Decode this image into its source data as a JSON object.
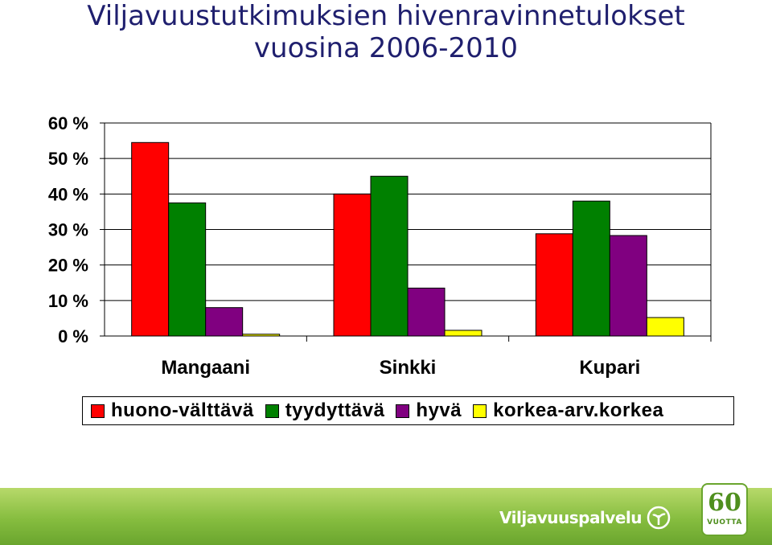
{
  "title": {
    "line1": "Viljavuustutkimuksien hivenravinnetulokset",
    "line2": "vuosina 2006-2010"
  },
  "chart_data": {
    "type": "bar",
    "categories": [
      "Mangaani",
      "Sinkki",
      "Kupari"
    ],
    "series": [
      {
        "name": "huono-välttävä",
        "color": "#ff0000",
        "values": [
          54.5,
          40,
          28.8
        ]
      },
      {
        "name": "tyydyttävä",
        "color": "#008000",
        "values": [
          37.5,
          45,
          38
        ]
      },
      {
        "name": "hyvä",
        "color": "#800080",
        "values": [
          8,
          13.5,
          28.3
        ]
      },
      {
        "name": "korkea-arv.korkea",
        "color": "#ffff00",
        "values": [
          0.5,
          1.6,
          5.2
        ]
      }
    ],
    "yticks": [
      "0 %",
      "10 %",
      "20 %",
      "30 %",
      "40 %",
      "50 %",
      "60 %"
    ],
    "ylim": [
      0,
      60
    ],
    "grid": true,
    "legend": "bottom",
    "xlabel": "",
    "ylabel": ""
  },
  "footer": {
    "brand": "Viljavuuspalvelu",
    "badge_number": "60",
    "badge_text": "VUOTTA",
    "color_light": "#b7d96a",
    "color_dark": "#6aa52e"
  }
}
